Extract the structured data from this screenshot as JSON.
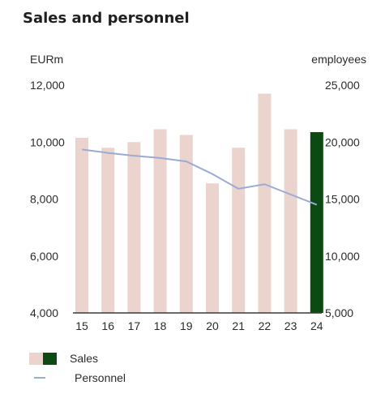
{
  "chart_data": {
    "type": "bar",
    "title": "Sales and personnel",
    "y_left_unit": "EURm",
    "y_right_unit": "employees",
    "categories": [
      "15",
      "16",
      "17",
      "18",
      "19",
      "20",
      "21",
      "22",
      "23",
      "24"
    ],
    "y_left_ticks": [
      "4,000",
      "6,000",
      "8,000",
      "10,000",
      "12,000"
    ],
    "y_right_ticks": [
      "5,000",
      "10,000",
      "15,000",
      "20,000",
      "25,000"
    ],
    "y_left_range": [
      4000,
      12000
    ],
    "y_right_range": [
      5000,
      25000
    ],
    "grid": false,
    "legend_position": "bottom-left",
    "series": [
      {
        "name": "Sales",
        "kind": "bar",
        "axis": "left",
        "values": [
          10150,
          9800,
          10000,
          10450,
          10250,
          8550,
          9800,
          11700,
          10450,
          10350
        ],
        "highlight_index": 9
      },
      {
        "name": "Personnel",
        "kind": "line",
        "axis": "right",
        "values": [
          19350,
          19050,
          18800,
          18600,
          18300,
          17200,
          15900,
          16300,
          15400,
          14500
        ]
      }
    ],
    "colors": {
      "bar": "#ead4cd",
      "bar_highlight": "#0b4a12",
      "line": "#9aabd6",
      "baseline": "#3a3a3a"
    }
  }
}
